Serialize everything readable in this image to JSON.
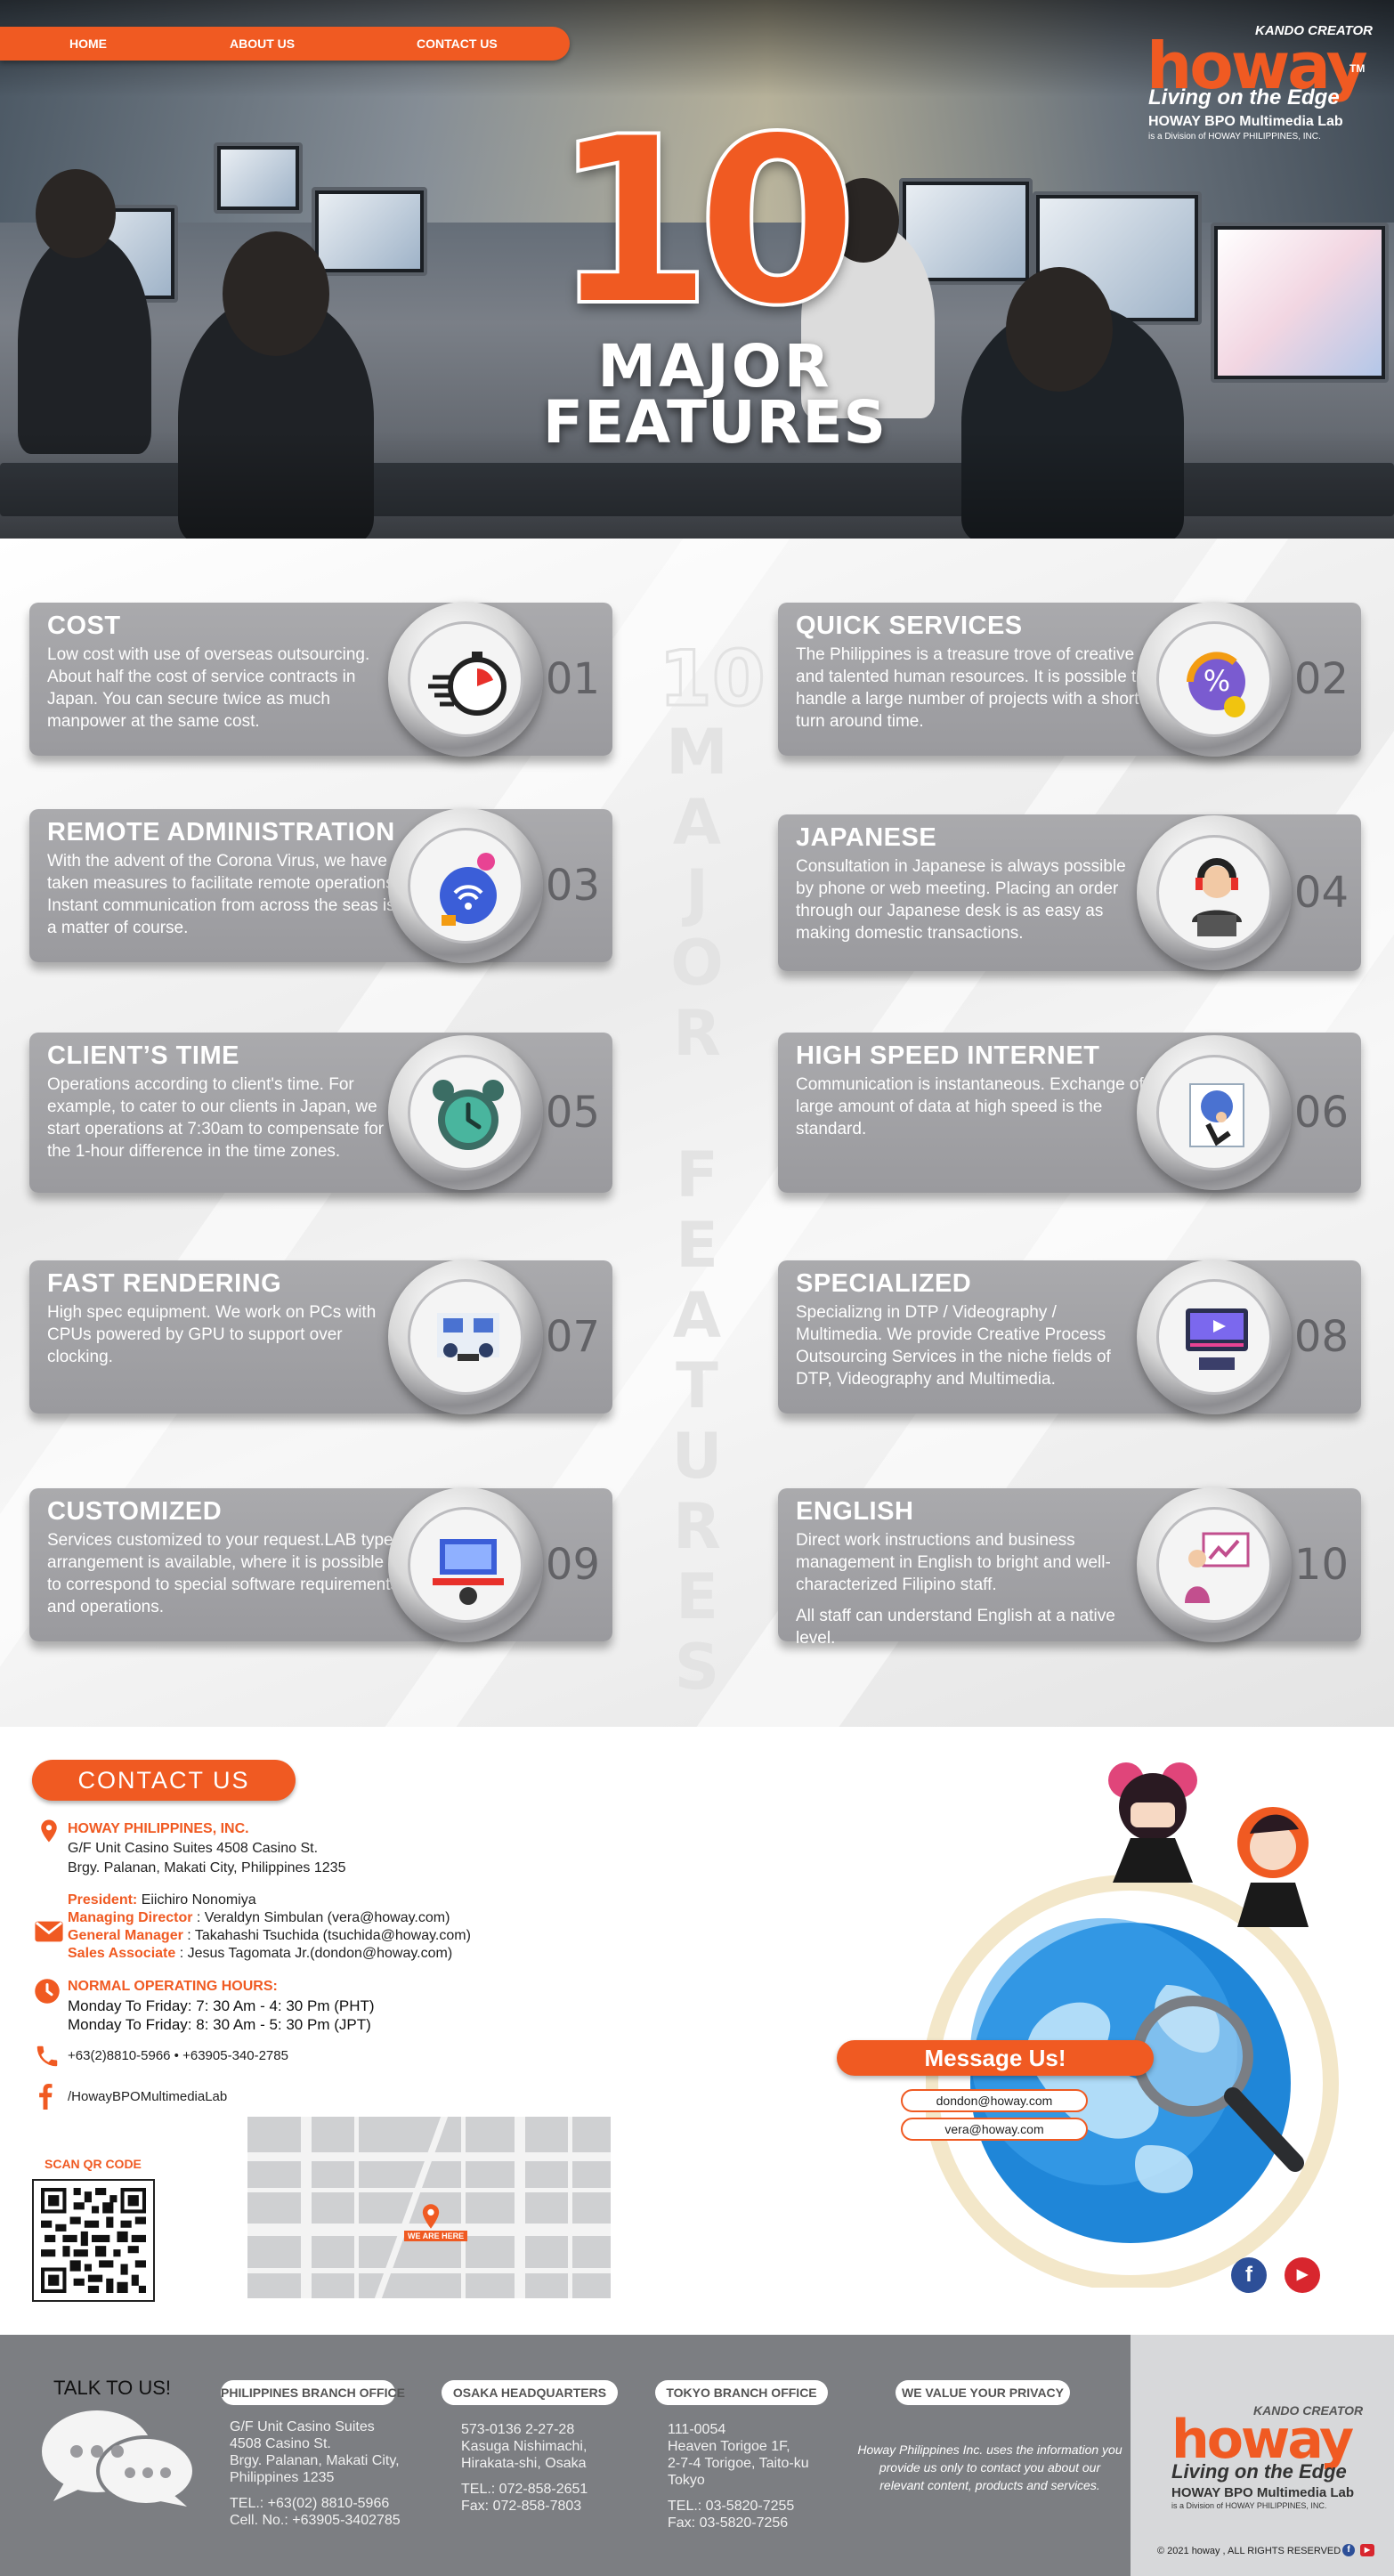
{
  "nav": {
    "home": "HOME",
    "about": "ABOUT US",
    "contact": "CONTACT US"
  },
  "logo": {
    "kando": "KANDO CREATOR",
    "word": "howay",
    "tm": "TM",
    "tagline": "Living on the Edge",
    "lab": "HOWAY BPO Multimedia Lab",
    "division": "is a Division of HOWAY PHILIPPINES, INC."
  },
  "hero": {
    "number": "10",
    "line1": "MAJOR",
    "line2": "FEATURES"
  },
  "vertical": {
    "number": "10",
    "word1": "MAJOR",
    "word2": "FEATURES"
  },
  "features": [
    {
      "title": "COST",
      "body": "Low cost with use of overseas outsourcing. About half the cost of service contracts in Japan. You can secure twice as much manpower at the same cost.",
      "num": "01",
      "icon": "stopwatch-icon"
    },
    {
      "title": "QUICK SERVICES",
      "body": "The Philippines is a treasure trove of creative and talented human resources. It is possible to handle a large number of projects with a short turn around time.",
      "num": "02",
      "icon": "discount-icon"
    },
    {
      "title": "REMOTE ADMINISTRATION",
      "body": "With the advent of the Corona Virus, we have taken measures to facilitate remote operations. Instant communication from across the seas is a matter of course.",
      "num": "03",
      "icon": "remote-work-icon"
    },
    {
      "title": "JAPANESE",
      "body": "Consultation in Japanese is always possible by phone or web meeting. Placing an order through our Japanese desk is as easy as making domestic transactions.",
      "num": "04",
      "icon": "headset-operator-icon"
    },
    {
      "title": "CLIENT’S TIME",
      "body": "Operations according to client's time. For example, to cater to our clients in Japan, we start operations at 7:30am to compensate for the 1-hour difference in the time zones.",
      "num": "05",
      "icon": "alarm-clock-icon"
    },
    {
      "title": "HIGH SPEED INTERNET",
      "body": "Communication is instantaneous. Exchange of large amount of data at high speed is the standard.",
      "num": "06",
      "icon": "running-speed-icon"
    },
    {
      "title": "FAST RENDERING",
      "body": "High spec equipment. We work on PCs with CPUs powered by GPU to support over clocking.",
      "num": "07",
      "icon": "meeting-icon"
    },
    {
      "title": "SPECIALIZED",
      "body": "Specializng in DTP / Videography / Multimedia. We provide Creative Process Outsourcing Services in the niche fields of DTP, Videography and Multimedia.",
      "num": "08",
      "icon": "video-editing-icon"
    },
    {
      "title": "CUSTOMIZED",
      "body": "Services customized to your request.LAB type arrangement is available, where it is possible to correspond to special software requirements and operations.",
      "num": "09",
      "icon": "workstation-icon"
    },
    {
      "title": "ENGLISH",
      "body": "Direct work instructions and business management in English to bright and well-characterized Filipino staff.",
      "body2": "All staff can understand English at a native level.",
      "num": "10",
      "icon": "presentation-icon"
    }
  ],
  "contact": {
    "heading": "CONTACT US",
    "company": "HOWAY PHILIPPINES, INC.",
    "addr1": "G/F Unit Casino Suites 4508 Casino St.",
    "addr2": "Brgy. Palanan, Makati City, Philippines 1235",
    "president_label": "President:",
    "president": " Eiichiro Nonomiya",
    "md_label": "Managing Director",
    "md": " : Veraldyn Simbulan (vera@howay.com)",
    "gm_label": "General Manager",
    "gm": " : Takahashi Tsuchida (tsuchida@howay.com)",
    "sa_label": "Sales Associate",
    "sa": " : Jesus Tagomata Jr.(dondon@howay.com)",
    "hours_title": "NORMAL OPERATING HOURS:",
    "hours1": "Monday To Friday: 7: 30 Am - 4: 30 Pm (PHT)",
    "hours2": "Monday To Friday: 8: 30 Am - 5: 30 Pm (JPT)",
    "phone": "+63(2)8810-5966  • +63905-340-2785",
    "facebook": "/HowayBPOMultimediaLab",
    "qr_label": "SCAN QR CODE",
    "map_pin": "WE ARE HERE",
    "message": "Message Us!",
    "email1": "dondon@howay.com",
    "email2": "vera@howay.com"
  },
  "footer": {
    "talk": "TALK TO US!",
    "ph_title": "PHILIPPINES BRANCH OFFICE",
    "ph_addr": [
      "G/F Unit Casino Suites",
      "4508 Casino St.",
      "Brgy. Palanan, Makati City,",
      "Philippines 1235"
    ],
    "ph_tel": "TEL.: +63(02) 8810-5966",
    "ph_cell": "Cell. No.: +63905-3402785",
    "osaka_title": "OSAKA HEADQUARTERS",
    "osaka_addr": [
      "573-0136 2-27-28",
      "Kasuga Nishimachi,",
      "Hirakata-shi, Osaka"
    ],
    "osaka_tel": "TEL.: 072-858-2651",
    "osaka_fax": "Fax: 072-858-7803",
    "tokyo_title": "TOKYO BRANCH OFFICE",
    "tokyo_addr": [
      "111-0054",
      "Heaven Torigoe 1F,",
      "2-7-4 Torigoe, Taito-ku",
      "Tokyo"
    ],
    "tokyo_tel": "TEL.: 03-5820-7255",
    "tokyo_fax": "Fax: 03-5820-7256",
    "privacy_title": "WE VALUE YOUR PRIVACY",
    "privacy": "Howay Philippines Inc. uses the information you provide us only to contact you about our relevant content, products and services.",
    "copyright": "© 2021 howay , ALL RIGHTS RESERVED"
  },
  "colors": {
    "accent": "#f05a22",
    "card": "#9e9ea2",
    "footer": "#7c7e82"
  }
}
